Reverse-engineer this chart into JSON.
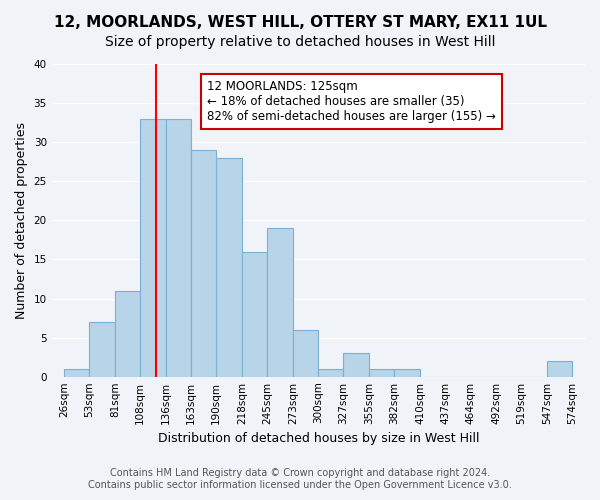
{
  "title_line1": "12, MOORLANDS, WEST HILL, OTTERY ST MARY, EX11 1UL",
  "title_line2": "Size of property relative to detached houses in West Hill",
  "xlabel": "Distribution of detached houses by size in West Hill",
  "ylabel": "Number of detached properties",
  "footnote_line1": "Contains HM Land Registry data © Crown copyright and database right 2024.",
  "footnote_line2": "Contains public sector information licensed under the Open Government Licence v3.0.",
  "bin_edges": [
    26,
    53,
    81,
    108,
    136,
    163,
    190,
    218,
    245,
    273,
    300,
    327,
    355,
    382,
    410,
    437,
    464,
    492,
    519,
    547,
    574
  ],
  "bin_labels": [
    "26sqm",
    "53sqm",
    "81sqm",
    "108sqm",
    "136sqm",
    "163sqm",
    "190sqm",
    "218sqm",
    "245sqm",
    "273sqm",
    "300sqm",
    "327sqm",
    "355sqm",
    "382sqm",
    "410sqm",
    "437sqm",
    "464sqm",
    "492sqm",
    "519sqm",
    "547sqm",
    "574sqm"
  ],
  "counts": [
    1,
    7,
    11,
    33,
    33,
    29,
    28,
    16,
    19,
    6,
    1,
    3,
    1,
    1,
    0,
    0,
    0,
    0,
    0,
    2
  ],
  "bar_color": "#b8d4e8",
  "bar_edge_color": "#7bafd4",
  "bar_linewidth": 0.8,
  "red_line_x": 125,
  "annotation_text_line1": "12 MOORLANDS: 125sqm",
  "annotation_text_line2": "← 18% of detached houses are smaller (35)",
  "annotation_text_line3": "82% of semi-detached houses are larger (155) →",
  "annotation_box_facecolor": "#ffffff",
  "annotation_box_edgecolor": "#cc0000",
  "ylim": [
    0,
    40
  ],
  "yticks": [
    0,
    5,
    10,
    15,
    20,
    25,
    30,
    35,
    40
  ],
  "background_color": "#f0f4f8",
  "grid_color": "#ffffff",
  "title_fontsize": 11,
  "subtitle_fontsize": 10,
  "axis_label_fontsize": 9,
  "tick_fontsize": 7.5,
  "annotation_fontsize": 8.5,
  "footnote_fontsize": 7
}
